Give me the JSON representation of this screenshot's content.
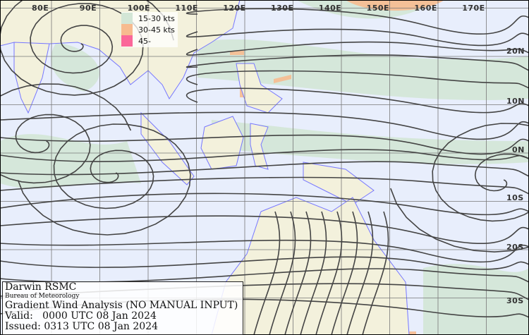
{
  "map": {
    "type": "gradient wind streamline analysis",
    "colors": {
      "ocean": "#e8eefc",
      "land": "#f3f1dc",
      "coast": "#7777ff",
      "streamline": "#444444",
      "grid": "#777777"
    },
    "longitude_labels": [
      "80E",
      "90E",
      "100E",
      "110E",
      "120E",
      "130E",
      "140E",
      "150E",
      "160E",
      "170E"
    ],
    "latitude_labels": [
      "20N",
      "10N",
      "0N",
      "10S",
      "20S",
      "30S"
    ]
  },
  "legend": {
    "items": [
      {
        "label": "15-30 kts",
        "color": "#d3e6d6"
      },
      {
        "label": "30-45 kts",
        "color": "#f7bb8f"
      },
      {
        "label": "45-",
        "color": "#fb6799"
      }
    ]
  },
  "info": {
    "centre": "Darwin RSMC",
    "agency": "Bureau of Meteorology",
    "title": "Gradient Wind Analysis (NO MANUAL INPUT)",
    "valid": "Valid:   0000 UTC 08 Jan 2024",
    "issued": "Issued: 0313 UTC 08 Jan 2024"
  }
}
